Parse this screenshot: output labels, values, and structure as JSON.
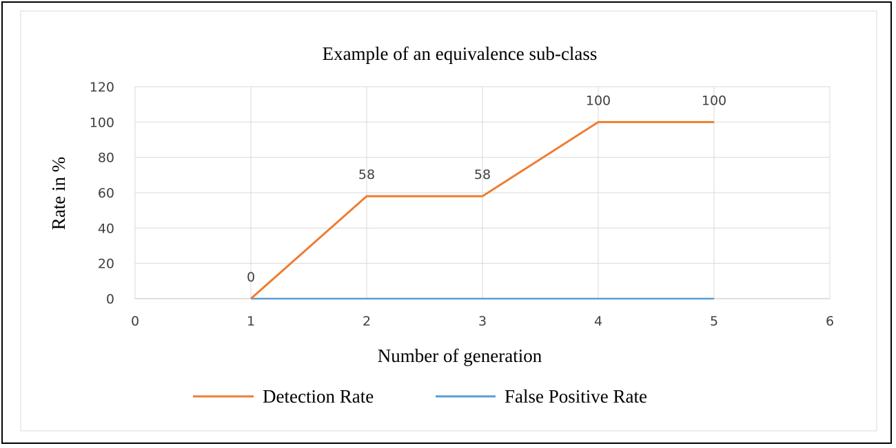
{
  "chart_data": {
    "type": "line",
    "title": "Example of an equivalence sub-class",
    "xlabel": "Number of generation",
    "ylabel": "Rate in %",
    "xlim": [
      0,
      6
    ],
    "ylim": [
      0,
      120
    ],
    "x_ticks": [
      0,
      1,
      2,
      3,
      4,
      5,
      6
    ],
    "y_ticks": [
      0,
      20,
      40,
      60,
      80,
      100,
      120
    ],
    "grid": true,
    "legend_position": "bottom",
    "series": [
      {
        "name": "Detection Rate",
        "color": "#ED7D31",
        "x": [
          1,
          2,
          3,
          4,
          5
        ],
        "y": [
          0,
          58,
          58,
          100,
          100
        ],
        "data_labels": [
          "0",
          "58",
          "58",
          "100",
          "100"
        ]
      },
      {
        "name": "False Positive Rate",
        "color": "#5B9BD5",
        "x": [
          1,
          2,
          3,
          4,
          5
        ],
        "y": [
          0,
          0,
          0,
          0,
          0
        ]
      }
    ]
  }
}
